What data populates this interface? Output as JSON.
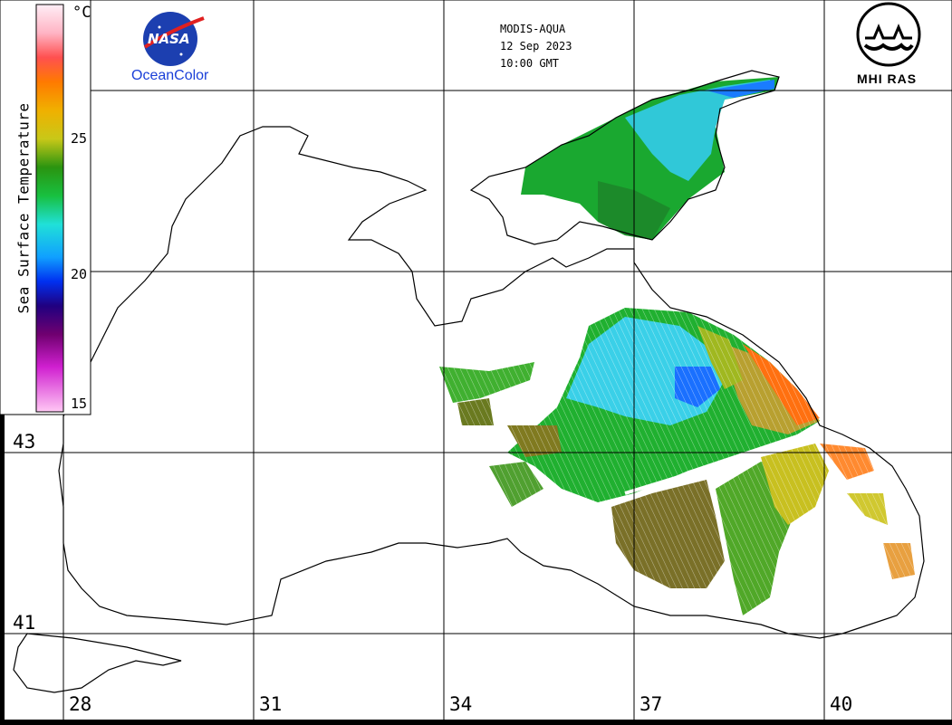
{
  "header": {
    "sensor": "MODIS-AQUA",
    "date": "12 Sep 2023",
    "time": "10:00 GMT"
  },
  "logos": {
    "nasa_text": "NASA",
    "oceancolor_text": "OceanColor",
    "mhi_text": "MHI RAS"
  },
  "colorbar": {
    "title": "Sea Surface Temperature",
    "unit": "°C",
    "ticks": [
      "25",
      "20",
      "15"
    ],
    "colors": [
      "#ffe8f4",
      "#ffb0c0",
      "#ff6060",
      "#ff3010",
      "#ff7a00",
      "#f0b000",
      "#d8d020",
      "#a8c020",
      "#3a9a10",
      "#10b020",
      "#20d060",
      "#20e0d0",
      "#20b8ff",
      "#0060ff",
      "#0010d0",
      "#300080",
      "#600070",
      "#a000a0",
      "#e040e0",
      "#ffb8f0"
    ]
  },
  "axes": {
    "longitude_labels": [
      "28",
      "31",
      "34",
      "37",
      "40"
    ],
    "latitude_labels": [
      "43",
      "41"
    ]
  },
  "palette": {
    "land_line": "#000000",
    "grid": "#000000",
    "background": "#ffffff"
  }
}
